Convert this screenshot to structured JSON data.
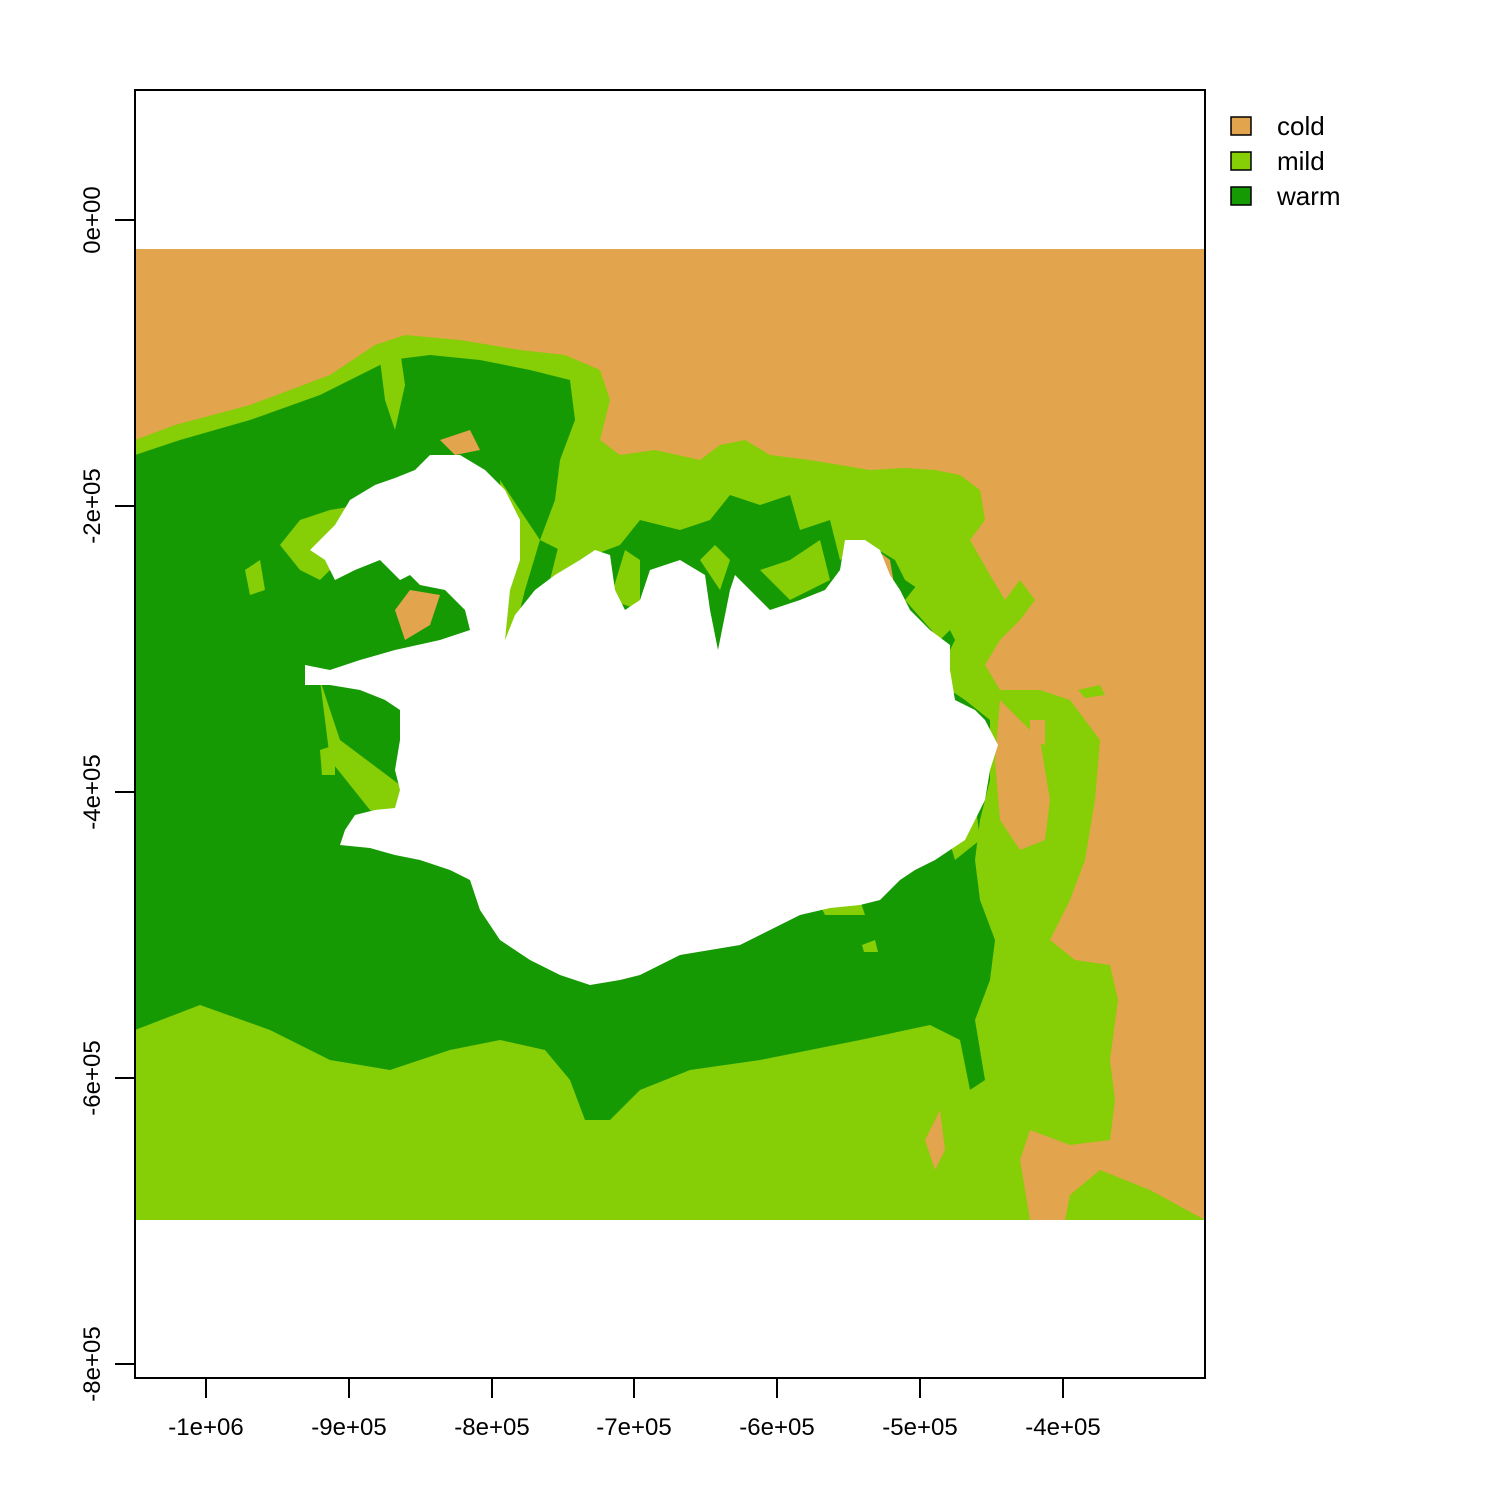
{
  "map": {
    "x_ticks": [
      "-1e+06",
      "-9e+05",
      "-8e+05",
      "-7e+05",
      "-6e+05",
      "-5e+05",
      "-4e+05"
    ],
    "y_ticks": [
      "0e+00",
      "-2e+05",
      "-4e+05",
      "-6e+05",
      "-8e+05"
    ],
    "legend": [
      {
        "label": "cold",
        "color": "#E2A44C"
      },
      {
        "label": "mild",
        "color": "#86CE06"
      },
      {
        "label": "warm",
        "color": "#169A04"
      }
    ],
    "land_color": "#FFFFFF"
  }
}
